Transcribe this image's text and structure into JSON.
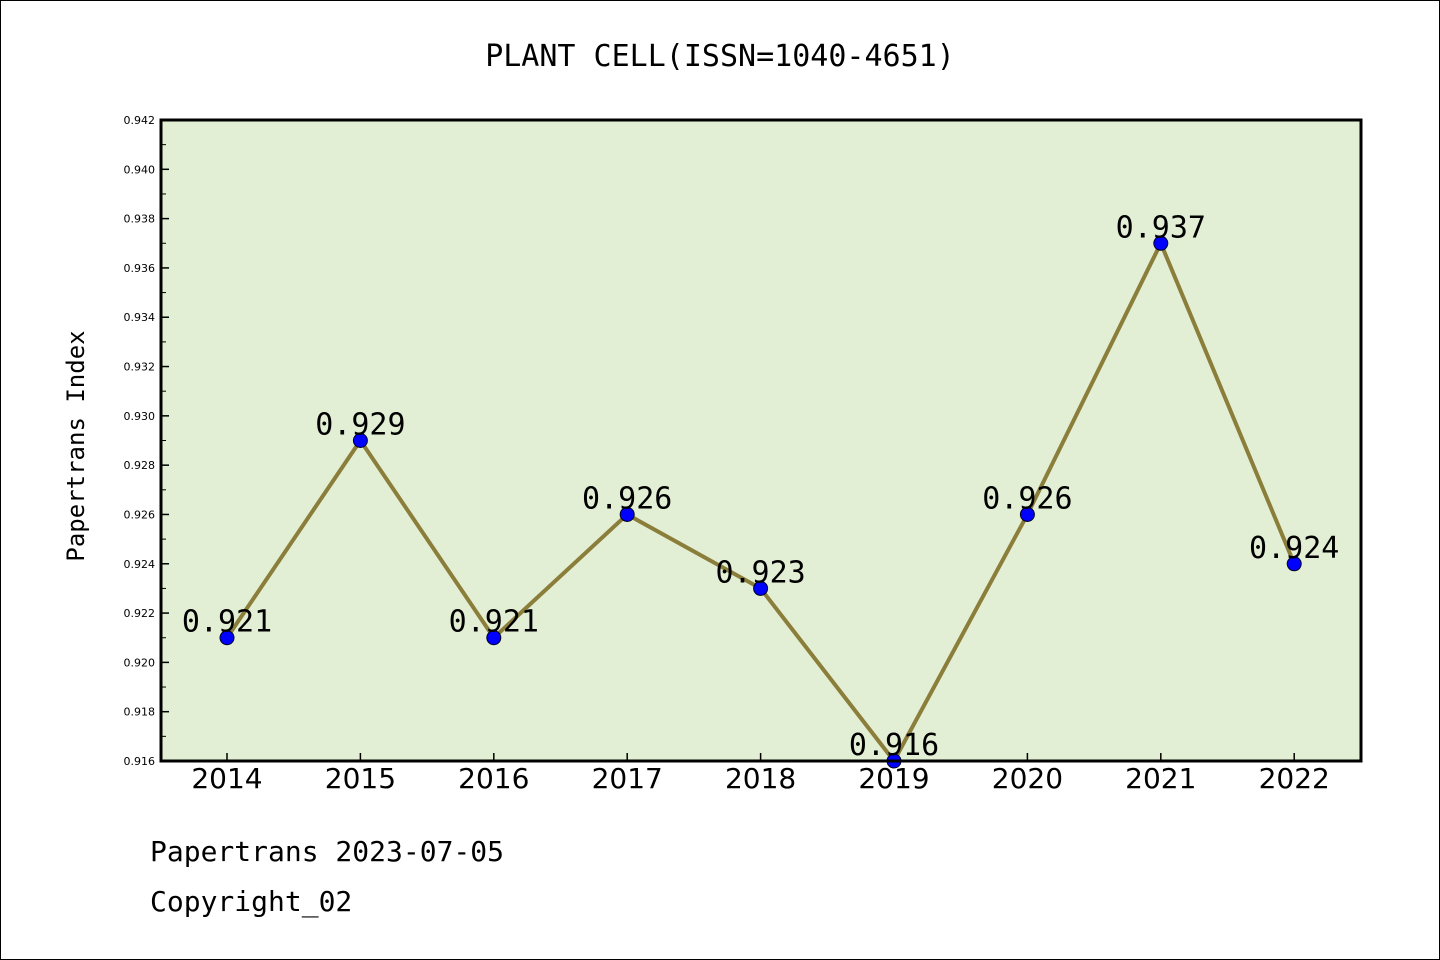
{
  "chart_data": {
    "type": "line",
    "title": "PLANT CELL(ISSN=1040-4651)",
    "xlabel": "",
    "ylabel": "Papertrans Index",
    "categories": [
      "2014",
      "2015",
      "2016",
      "2017",
      "2018",
      "2019",
      "2020",
      "2021",
      "2022"
    ],
    "values": [
      0.921,
      0.929,
      0.921,
      0.926,
      0.923,
      0.916,
      0.926,
      0.937,
      0.924
    ],
    "data_labels": [
      "0.921",
      "0.929",
      "0.921",
      "0.926",
      "0.923",
      "0.916",
      "0.926",
      "0.937",
      "0.924"
    ],
    "ylim": [
      0.916,
      0.942
    ],
    "yticks": [
      "0.916",
      "0.918",
      "0.920",
      "0.922",
      "0.924",
      "0.926",
      "0.928",
      "0.930",
      "0.932",
      "0.934",
      "0.936",
      "0.938",
      "0.940",
      "0.942"
    ],
    "grid": false,
    "colors": {
      "plot_background": "#e2efd4",
      "line": "#8b7d3a",
      "marker": "#0000ff"
    }
  },
  "footer": {
    "line1": "Papertrans 2023-07-05",
    "line2": "Copyright_02"
  }
}
